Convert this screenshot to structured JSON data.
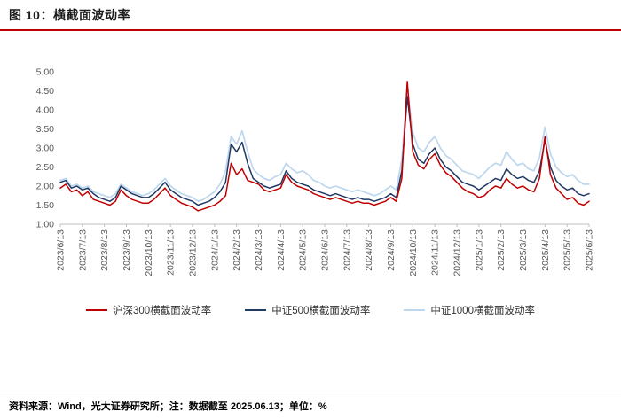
{
  "header": {
    "title": "图 10：横截面波动率"
  },
  "footer": {
    "text": "资料来源：Wind，光大证券研究所；注：数据截至 2025.06.13；单位：%"
  },
  "colors": {
    "accent_red": "#C00000",
    "axis_text": "#595959",
    "axis_line": "#BFBFBF"
  },
  "chart_data": {
    "type": "line",
    "title": "横截面波动率",
    "ylabel": "",
    "xlabel": "",
    "unit": "%",
    "ylim": [
      1.0,
      5.0
    ],
    "ytick_labels": [
      "1.00",
      "1.50",
      "2.00",
      "2.50",
      "3.00",
      "3.50",
      "4.00",
      "4.50",
      "5.00"
    ],
    "grid": false,
    "legend_position": "bottom",
    "points_per_month": 4,
    "x_tick_labels": [
      "2023/6/13",
      "2023/7/13",
      "2023/8/13",
      "2023/9/13",
      "2023/10/13",
      "2023/11/13",
      "2023/12/13",
      "2024/1/13",
      "2024/2/13",
      "2024/3/13",
      "2024/4/13",
      "2024/5/13",
      "2024/6/13",
      "2024/7/13",
      "2024/8/13",
      "2024/9/13",
      "2024/10/13",
      "2024/11/13",
      "2024/12/13",
      "2025/1/13",
      "2025/2/13",
      "2025/3/13",
      "2025/4/13",
      "2025/5/13",
      "2025/6/13"
    ],
    "series": [
      {
        "name": "沪深300横截面波动率",
        "color": "#C00000",
        "width": 1.5,
        "values": [
          1.95,
          2.05,
          1.85,
          1.9,
          1.75,
          1.85,
          1.65,
          1.6,
          1.55,
          1.5,
          1.6,
          1.9,
          1.75,
          1.65,
          1.6,
          1.55,
          1.55,
          1.65,
          1.8,
          1.95,
          1.75,
          1.65,
          1.55,
          1.5,
          1.45,
          1.35,
          1.4,
          1.45,
          1.5,
          1.6,
          1.75,
          2.6,
          2.3,
          2.45,
          2.15,
          2.1,
          2.05,
          1.9,
          1.85,
          1.9,
          1.95,
          2.3,
          2.1,
          2.0,
          1.95,
          1.9,
          1.8,
          1.75,
          1.7,
          1.65,
          1.7,
          1.65,
          1.6,
          1.55,
          1.6,
          1.55,
          1.55,
          1.5,
          1.55,
          1.6,
          1.7,
          1.6,
          2.2,
          4.75,
          2.9,
          2.55,
          2.45,
          2.7,
          2.85,
          2.55,
          2.35,
          2.25,
          2.1,
          1.95,
          1.85,
          1.8,
          1.7,
          1.75,
          1.9,
          2.0,
          1.95,
          2.2,
          2.05,
          1.95,
          2.0,
          1.9,
          1.85,
          2.2,
          3.3,
          2.3,
          1.95,
          1.8,
          1.65,
          1.7,
          1.55,
          1.5,
          1.6
        ]
      },
      {
        "name": "中证500横截面波动率",
        "color": "#1F3864",
        "width": 1.5,
        "values": [
          2.1,
          2.15,
          1.95,
          2.0,
          1.9,
          1.95,
          1.8,
          1.7,
          1.65,
          1.6,
          1.7,
          2.0,
          1.9,
          1.8,
          1.75,
          1.7,
          1.7,
          1.8,
          1.95,
          2.1,
          1.9,
          1.8,
          1.7,
          1.65,
          1.6,
          1.5,
          1.55,
          1.6,
          1.7,
          1.85,
          2.1,
          3.1,
          2.9,
          3.15,
          2.6,
          2.2,
          2.1,
          2.0,
          1.95,
          2.0,
          2.05,
          2.4,
          2.2,
          2.1,
          2.05,
          2.0,
          1.9,
          1.85,
          1.8,
          1.75,
          1.8,
          1.75,
          1.7,
          1.65,
          1.7,
          1.65,
          1.65,
          1.6,
          1.65,
          1.7,
          1.8,
          1.7,
          2.4,
          4.35,
          3.1,
          2.7,
          2.6,
          2.85,
          3.0,
          2.7,
          2.5,
          2.4,
          2.25,
          2.1,
          2.05,
          2.0,
          1.9,
          2.0,
          2.1,
          2.2,
          2.15,
          2.45,
          2.3,
          2.2,
          2.25,
          2.15,
          2.1,
          2.4,
          3.2,
          2.5,
          2.15,
          2.0,
          1.9,
          1.95,
          1.8,
          1.75,
          1.8
        ]
      },
      {
        "name": "中证1000横截面波动率",
        "color": "#BDD7EE",
        "width": 1.7,
        "values": [
          2.15,
          2.2,
          2.0,
          2.05,
          1.95,
          2.0,
          1.85,
          1.8,
          1.75,
          1.7,
          1.8,
          2.05,
          1.95,
          1.85,
          1.8,
          1.75,
          1.8,
          1.9,
          2.05,
          2.2,
          2.0,
          1.9,
          1.8,
          1.75,
          1.7,
          1.6,
          1.65,
          1.75,
          1.85,
          2.05,
          2.4,
          3.3,
          3.1,
          3.45,
          2.9,
          2.45,
          2.3,
          2.2,
          2.15,
          2.25,
          2.3,
          2.6,
          2.45,
          2.35,
          2.4,
          2.3,
          2.15,
          2.1,
          2.0,
          1.95,
          2.0,
          1.95,
          1.9,
          1.85,
          1.9,
          1.85,
          1.8,
          1.75,
          1.8,
          1.9,
          2.0,
          1.9,
          2.7,
          4.55,
          3.4,
          3.0,
          2.9,
          3.15,
          3.3,
          3.0,
          2.8,
          2.7,
          2.55,
          2.4,
          2.35,
          2.3,
          2.2,
          2.35,
          2.5,
          2.6,
          2.55,
          2.9,
          2.7,
          2.55,
          2.6,
          2.45,
          2.4,
          2.75,
          3.55,
          2.85,
          2.5,
          2.35,
          2.25,
          2.3,
          2.15,
          2.05,
          2.05
        ]
      }
    ]
  }
}
